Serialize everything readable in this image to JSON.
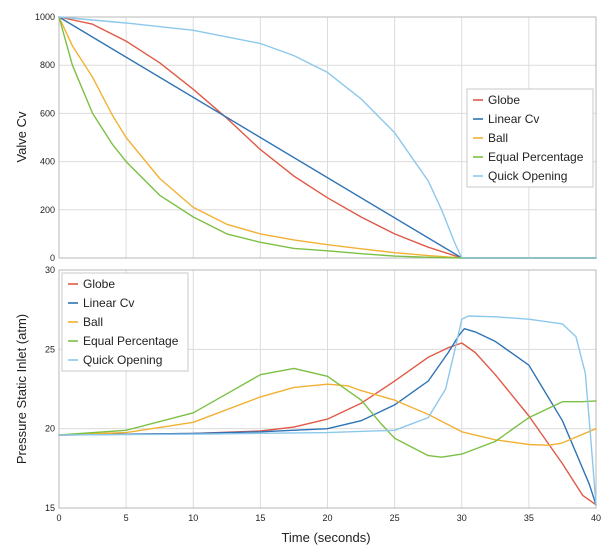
{
  "chart_data": [
    {
      "type": "line",
      "title": "",
      "xlabel": "",
      "ylabel": "Valve Cv",
      "xlim": [
        0,
        40
      ],
      "ylim": [
        0,
        1000
      ],
      "xticks": [
        0,
        5,
        10,
        15,
        20,
        25,
        30,
        35,
        40
      ],
      "xtick_labels": [],
      "yticks": [
        0,
        200,
        400,
        600,
        800,
        1000
      ],
      "ytick_labels": [
        "0",
        "200",
        "400",
        "600",
        "800",
        "1000"
      ],
      "grid": true,
      "legend": {
        "position": "right-middle"
      },
      "series": [
        {
          "name": "Globe",
          "color": "#e05a47",
          "x": [
            0,
            2.5,
            5,
            7.5,
            10,
            12.5,
            15,
            17.5,
            20,
            22.5,
            25,
            27.5,
            30,
            40
          ],
          "y": [
            1000,
            970,
            900,
            810,
            700,
            580,
            450,
            340,
            250,
            170,
            100,
            45,
            0,
            0
          ]
        },
        {
          "name": "Linear Cv",
          "color": "#2f73b5",
          "x": [
            0,
            30,
            40
          ],
          "y": [
            1000,
            0,
            0
          ]
        },
        {
          "name": "Ball",
          "color": "#f2b134",
          "x": [
            0,
            1,
            2.5,
            4,
            5,
            7.5,
            10,
            12.5,
            15,
            17.5,
            20,
            22.5,
            25,
            27.5,
            30,
            40
          ],
          "y": [
            1000,
            880,
            750,
            590,
            500,
            330,
            210,
            140,
            100,
            75,
            55,
            38,
            22,
            10,
            0,
            0
          ]
        },
        {
          "name": "Equal Percentage",
          "color": "#7bc043",
          "x": [
            0,
            1,
            2.5,
            4,
            5,
            7.5,
            10,
            12.5,
            15,
            17.5,
            20,
            22.5,
            25,
            27.5,
            30,
            40
          ],
          "y": [
            1000,
            800,
            600,
            470,
            400,
            260,
            170,
            100,
            65,
            40,
            30,
            18,
            8,
            3,
            0,
            0
          ]
        },
        {
          "name": "Quick Opening",
          "color": "#8cc8ec",
          "x": [
            0,
            5,
            10,
            15,
            17.5,
            20,
            22.5,
            25,
            27.5,
            28.5,
            29.5,
            30,
            40
          ],
          "y": [
            1000,
            975,
            945,
            890,
            840,
            770,
            660,
            520,
            320,
            200,
            60,
            0,
            0
          ]
        }
      ]
    },
    {
      "type": "line",
      "title": "",
      "xlabel": "Time (seconds)",
      "ylabel": "Pressure Static Inlet (atm)",
      "xlim": [
        0,
        40
      ],
      "ylim": [
        15,
        30
      ],
      "xticks": [
        0,
        5,
        10,
        15,
        20,
        25,
        30,
        35,
        40
      ],
      "xtick_labels": [
        "0",
        "5",
        "10",
        "15",
        "20",
        "25",
        "30",
        "35",
        "40"
      ],
      "yticks": [
        15,
        20,
        25,
        30
      ],
      "ytick_labels": [
        "15",
        "20",
        "25",
        "30"
      ],
      "grid": true,
      "legend": {
        "position": "top-left"
      },
      "series": [
        {
          "name": "Globe",
          "color": "#e05a47",
          "x": [
            0,
            5,
            10,
            15,
            17.5,
            20,
            22.5,
            25,
            27.5,
            29,
            30,
            31,
            32.5,
            35,
            37.5,
            39,
            40
          ],
          "y": [
            19.6,
            19.65,
            19.7,
            19.85,
            20.1,
            20.6,
            21.6,
            23.0,
            24.5,
            25.1,
            25.4,
            24.8,
            23.4,
            20.8,
            17.8,
            15.8,
            15.2
          ]
        },
        {
          "name": "Linear Cv",
          "color": "#2f73b5",
          "x": [
            0,
            10,
            15,
            20,
            22.5,
            25,
            27.5,
            29,
            29.8,
            30.2,
            31,
            32.5,
            35,
            37.5,
            38.5,
            39.5,
            40
          ],
          "y": [
            19.6,
            19.7,
            19.8,
            20.0,
            20.5,
            21.5,
            23.0,
            24.8,
            25.9,
            26.3,
            26.1,
            25.5,
            24.0,
            20.5,
            18.5,
            16.5,
            15.2
          ]
        },
        {
          "name": "Ball",
          "color": "#f2b134",
          "x": [
            0,
            5,
            10,
            15,
            17.5,
            20,
            21.5,
            22.5,
            25,
            27.5,
            30,
            32.5,
            35,
            36.5,
            37.5,
            40
          ],
          "y": [
            19.6,
            19.75,
            20.4,
            22.0,
            22.6,
            22.8,
            22.7,
            22.4,
            21.8,
            20.9,
            19.8,
            19.3,
            19.0,
            18.95,
            19.1,
            20.0
          ]
        },
        {
          "name": "Equal Percentage",
          "color": "#7bc043",
          "x": [
            0,
            5,
            10,
            12.5,
            15,
            17.5,
            20,
            22.5,
            24,
            25,
            27.5,
            28.5,
            30,
            32.5,
            35,
            37.5,
            39,
            40
          ],
          "y": [
            19.6,
            19.9,
            21.0,
            22.2,
            23.4,
            23.8,
            23.3,
            21.8,
            20.3,
            19.4,
            18.3,
            18.2,
            18.4,
            19.2,
            20.7,
            21.7,
            21.7,
            21.75
          ]
        },
        {
          "name": "Quick Opening",
          "color": "#8cc8ec",
          "x": [
            0,
            10,
            20,
            25,
            27.5,
            28.8,
            29.5,
            30,
            30.5,
            32.5,
            35,
            37.5,
            38.5,
            39.2,
            39.6,
            40
          ],
          "y": [
            19.6,
            19.65,
            19.75,
            19.9,
            20.7,
            22.5,
            25.0,
            26.9,
            27.1,
            27.05,
            26.9,
            26.6,
            25.8,
            23.5,
            19.5,
            15.2
          ]
        }
      ]
    }
  ]
}
